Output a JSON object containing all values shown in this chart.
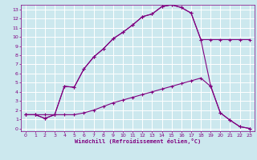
{
  "xlabel": "Windchill (Refroidissement éolien,°C)",
  "bg_color": "#cce8ee",
  "grid_color": "#ffffff",
  "line_color": "#800080",
  "spine_color": "#800080",
  "xlim": [
    -0.5,
    23.5
  ],
  "ylim": [
    -0.3,
    13.5
  ],
  "xticks": [
    0,
    1,
    2,
    3,
    4,
    5,
    6,
    7,
    8,
    9,
    10,
    11,
    12,
    13,
    14,
    15,
    16,
    17,
    18,
    19,
    20,
    21,
    22,
    23
  ],
  "yticks": [
    0,
    1,
    2,
    3,
    4,
    5,
    6,
    7,
    8,
    9,
    10,
    11,
    12,
    13
  ],
  "line1_x": [
    0,
    1,
    2,
    3,
    4,
    5,
    6,
    7,
    8,
    9,
    10,
    11,
    12,
    13,
    14,
    15,
    16,
    17,
    18,
    19,
    20,
    21,
    22,
    23
  ],
  "line1_y": [
    1.5,
    1.5,
    1.1,
    1.5,
    4.6,
    4.5,
    6.5,
    7.8,
    8.7,
    9.8,
    10.5,
    11.3,
    12.2,
    12.5,
    13.3,
    13.5,
    13.2,
    12.6,
    9.7,
    4.7,
    1.7,
    0.9,
    0.2,
    0.0
  ],
  "line2_x": [
    0,
    1,
    2,
    3,
    4,
    5,
    6,
    7,
    8,
    9,
    10,
    11,
    12,
    13,
    14,
    15,
    16,
    17,
    18,
    19,
    20,
    21,
    22,
    23
  ],
  "line2_y": [
    1.5,
    1.5,
    1.5,
    1.5,
    1.5,
    1.5,
    1.7,
    2.0,
    2.4,
    2.8,
    3.1,
    3.4,
    3.7,
    4.0,
    4.3,
    4.6,
    4.9,
    5.2,
    5.5,
    4.6,
    1.7,
    0.9,
    0.2,
    0.0
  ],
  "line3_x": [
    0,
    1,
    2,
    3,
    4,
    5,
    6,
    7,
    8,
    9,
    10,
    11,
    12,
    13,
    14,
    15,
    16,
    17,
    18,
    19,
    20,
    21,
    22,
    23
  ],
  "line3_y": [
    1.5,
    1.5,
    1.1,
    1.5,
    4.6,
    4.5,
    6.5,
    7.8,
    8.7,
    9.8,
    10.5,
    11.3,
    12.2,
    12.5,
    13.3,
    13.5,
    13.2,
    12.6,
    9.7,
    9.7,
    9.7,
    9.7,
    9.7,
    9.7
  ]
}
